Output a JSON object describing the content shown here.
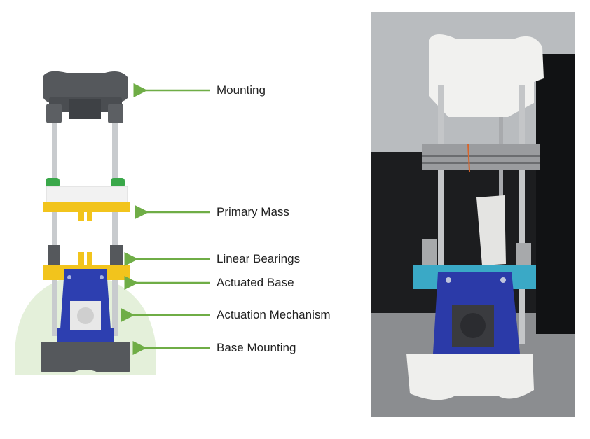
{
  "labels": {
    "mounting": "Mounting",
    "primary_mass": "Primary Mass",
    "linear_bearings": "Linear Bearings",
    "actuated_base": "Actuated Base",
    "actuation_mechanism": "Actuation Mechanism",
    "base_mounting": "Base Mounting"
  },
  "colors": {
    "arrow": "#6fad46",
    "highlight_region": "#e4f0da",
    "frame_dark": "#55585c",
    "rod": "#c8cbce",
    "yellow_part": "#f2c41c",
    "blue_part": "#2d3fb0",
    "green_clip": "#3aa84a",
    "white_part": "#f2f2f2",
    "teal_part": "#3aa9c6"
  },
  "icons": {
    "arrow": "left-arrow-icon"
  }
}
